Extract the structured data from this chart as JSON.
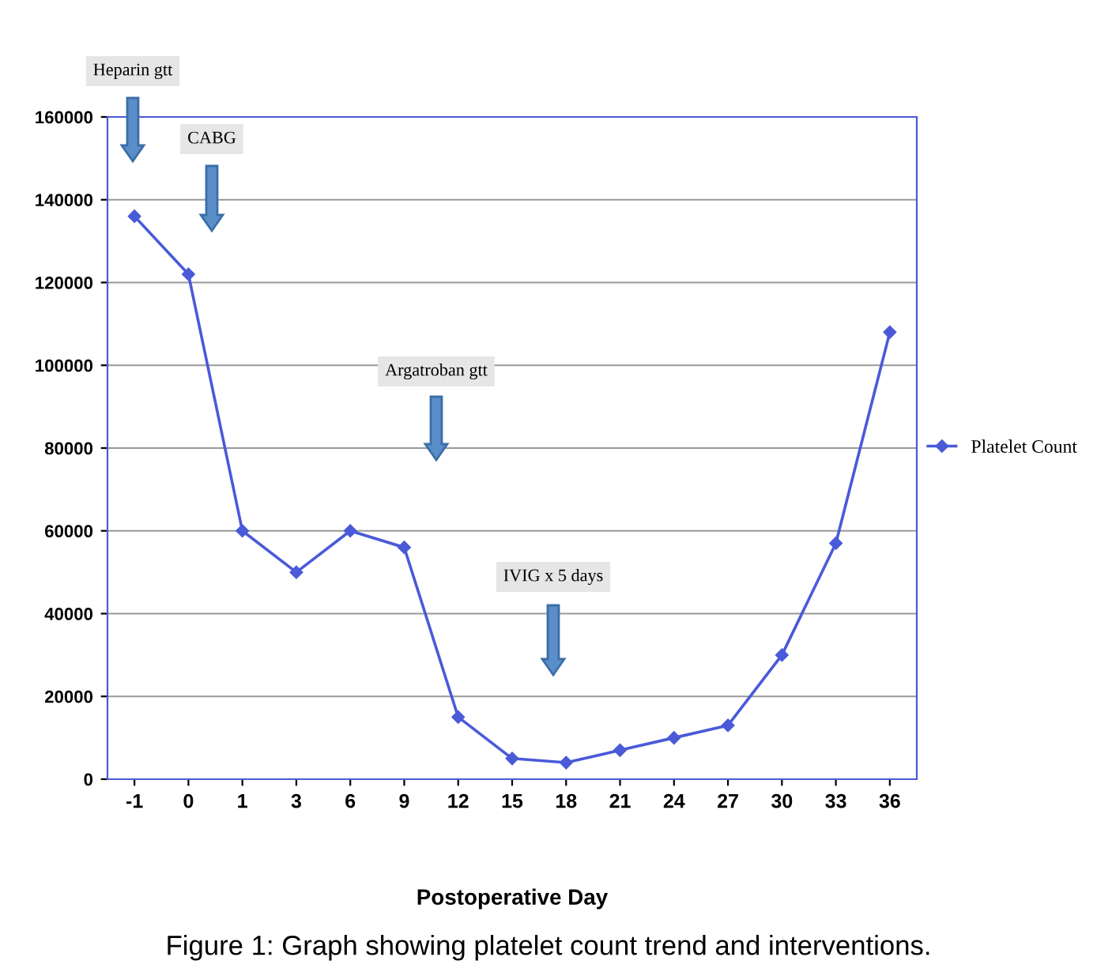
{
  "chart_data": {
    "type": "line",
    "xlabel": "Postoperative Day",
    "categories": [
      "-1",
      "0",
      "1",
      "3",
      "6",
      "9",
      "12",
      "15",
      "18",
      "21",
      "24",
      "27",
      "30",
      "33",
      "36"
    ],
    "series": [
      {
        "name": "Platelet Count",
        "color": "#4a5ad8",
        "values": [
          136000,
          122000,
          60000,
          50000,
          60000,
          56000,
          15000,
          5000,
          4000,
          7000,
          10000,
          13000,
          30000,
          57000,
          108000
        ]
      }
    ],
    "ylim": [
      0,
      160000
    ],
    "yticks": [
      0,
      20000,
      40000,
      60000,
      80000,
      100000,
      120000,
      140000,
      160000
    ],
    "grid": "y",
    "legend": "right",
    "marker": "diamond",
    "line_style": "solid",
    "annotations": [
      "Heparin gtt",
      "CABG",
      "Argatroban gtt",
      "IVIG x 5 days",
      "Figure 1: Graph showing platelet count trend and interventions."
    ]
  }
}
